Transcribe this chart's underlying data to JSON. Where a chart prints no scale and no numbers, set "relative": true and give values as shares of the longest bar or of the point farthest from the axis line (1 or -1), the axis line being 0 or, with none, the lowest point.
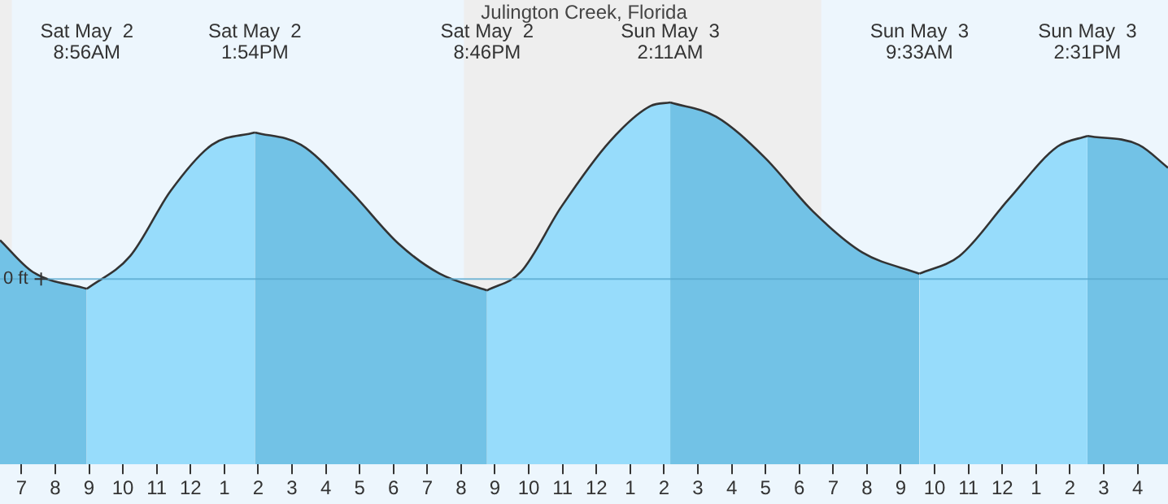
{
  "chart_data": {
    "type": "area",
    "title": "Julington Creek, Florida",
    "relative": true,
    "x": [
      "--05-02T06:22",
      "--05-02T07:20",
      "--05-02T08:56",
      "--05-02T10:13",
      "--05-02T11:25",
      "--05-02T12:38",
      "--05-02T13:54",
      "--05-02T15:16",
      "--05-02T16:43",
      "--05-02T18:09",
      "--05-02T19:22",
      "--05-02T20:46",
      "--05-02T21:46",
      "--05-02T22:58",
      "--05-03T00:24",
      "--05-03T01:36",
      "--05-03T02:11",
      "--05-03T03:32",
      "--05-03T04:58",
      "--05-03T06:25",
      "--05-03T07:52",
      "--05-03T09:33",
      "--05-03T10:44",
      "--05-03T12:11",
      "--05-03T13:38",
      "--05-03T14:31",
      "--05-03T16:02",
      "--05-03T16:54"
    ],
    "series": [
      {
        "color": "#72c2e6",
        "values": [
          0.22,
          0.04,
          -0.056,
          null,
          null,
          null,
          0.83,
          0.76,
          0.5,
          0.2,
          0.03,
          -0.065,
          null,
          null,
          null,
          null,
          1,
          0.92,
          0.69,
          0.38,
          0.15,
          0.03,
          null,
          null,
          null,
          0.81,
          0.76,
          0.63
        ]
      },
      {
        "color": "#97dcfb",
        "values": [
          null,
          null,
          -0.056,
          0.13,
          0.5,
          0.76,
          0.83,
          null,
          null,
          null,
          null,
          -0.065,
          0.04,
          0.41,
          0.78,
          0.98,
          1,
          null,
          null,
          null,
          null,
          0.03,
          0.13,
          0.45,
          0.75,
          0.81,
          null,
          null
        ]
      }
    ],
    "xlim": [
      "--05-02T06:22",
      "--05-03T16:54"
    ],
    "xticks": [
      {
        "value": "--05-02T07:00",
        "label": "7"
      },
      {
        "value": "--05-02T08:00",
        "label": "8"
      },
      {
        "value": "--05-02T09:00",
        "label": "9"
      },
      {
        "value": "--05-02T10:00",
        "label": "10"
      },
      {
        "value": "--05-02T11:00",
        "label": "11"
      },
      {
        "value": "--05-02T12:00",
        "label": "12"
      },
      {
        "value": "--05-02T13:00",
        "label": "1"
      },
      {
        "value": "--05-02T14:00",
        "label": "2"
      },
      {
        "value": "--05-02T15:00",
        "label": "3"
      },
      {
        "value": "--05-02T16:00",
        "label": "4"
      },
      {
        "value": "--05-02T17:00",
        "label": "5"
      },
      {
        "value": "--05-02T18:00",
        "label": "6"
      },
      {
        "value": "--05-02T19:00",
        "label": "7"
      },
      {
        "value": "--05-02T20:00",
        "label": "8"
      },
      {
        "value": "--05-02T21:00",
        "label": "9"
      },
      {
        "value": "--05-02T22:00",
        "label": "10"
      },
      {
        "value": "--05-02T23:00",
        "label": "11"
      },
      {
        "value": "--05-03T00:00",
        "label": "12"
      },
      {
        "value": "--05-03T01:00",
        "label": "1"
      },
      {
        "value": "--05-03T02:00",
        "label": "2"
      },
      {
        "value": "--05-03T03:00",
        "label": "3"
      },
      {
        "value": "--05-03T04:00",
        "label": "4"
      },
      {
        "value": "--05-03T05:00",
        "label": "5"
      },
      {
        "value": "--05-03T06:00",
        "label": "6"
      },
      {
        "value": "--05-03T07:00",
        "label": "7"
      },
      {
        "value": "--05-03T08:00",
        "label": "8"
      },
      {
        "value": "--05-03T09:00",
        "label": "9"
      },
      {
        "value": "--05-03T10:00",
        "label": "10"
      },
      {
        "value": "--05-03T11:00",
        "label": "11"
      },
      {
        "value": "--05-03T12:00",
        "label": "12"
      },
      {
        "value": "--05-03T13:00",
        "label": "1"
      },
      {
        "value": "--05-03T14:00",
        "label": "2"
      },
      {
        "value": "--05-03T15:00",
        "label": "3"
      },
      {
        "value": "--05-03T16:00",
        "label": "4"
      }
    ],
    "tick_labels": "x",
    "grid": false,
    "legend": false,
    "marker": "none",
    "line_style": "solid",
    "ref_lines": [
      {
        "axis": "y",
        "value": 0,
        "label": "0 ft",
        "color": "#5aaad0"
      }
    ],
    "bands": [
      {
        "axis": "x",
        "from": "--05-02T06:22",
        "to": "--05-02T06:43",
        "color": "#eeeeee"
      },
      {
        "axis": "x",
        "from": "--05-02T20:05",
        "to": "--05-03T06:39",
        "color": "#eeeeee"
      }
    ],
    "annotations": [
      "Sat May  2\n8:56AM",
      "Sat May  2\n1:54PM",
      "Sat May  2\n8:46PM",
      "Sun May  3\n2:11AM",
      "Sun May  3\n9:33AM",
      "Sun May  3\n2:31PM"
    ]
  }
}
